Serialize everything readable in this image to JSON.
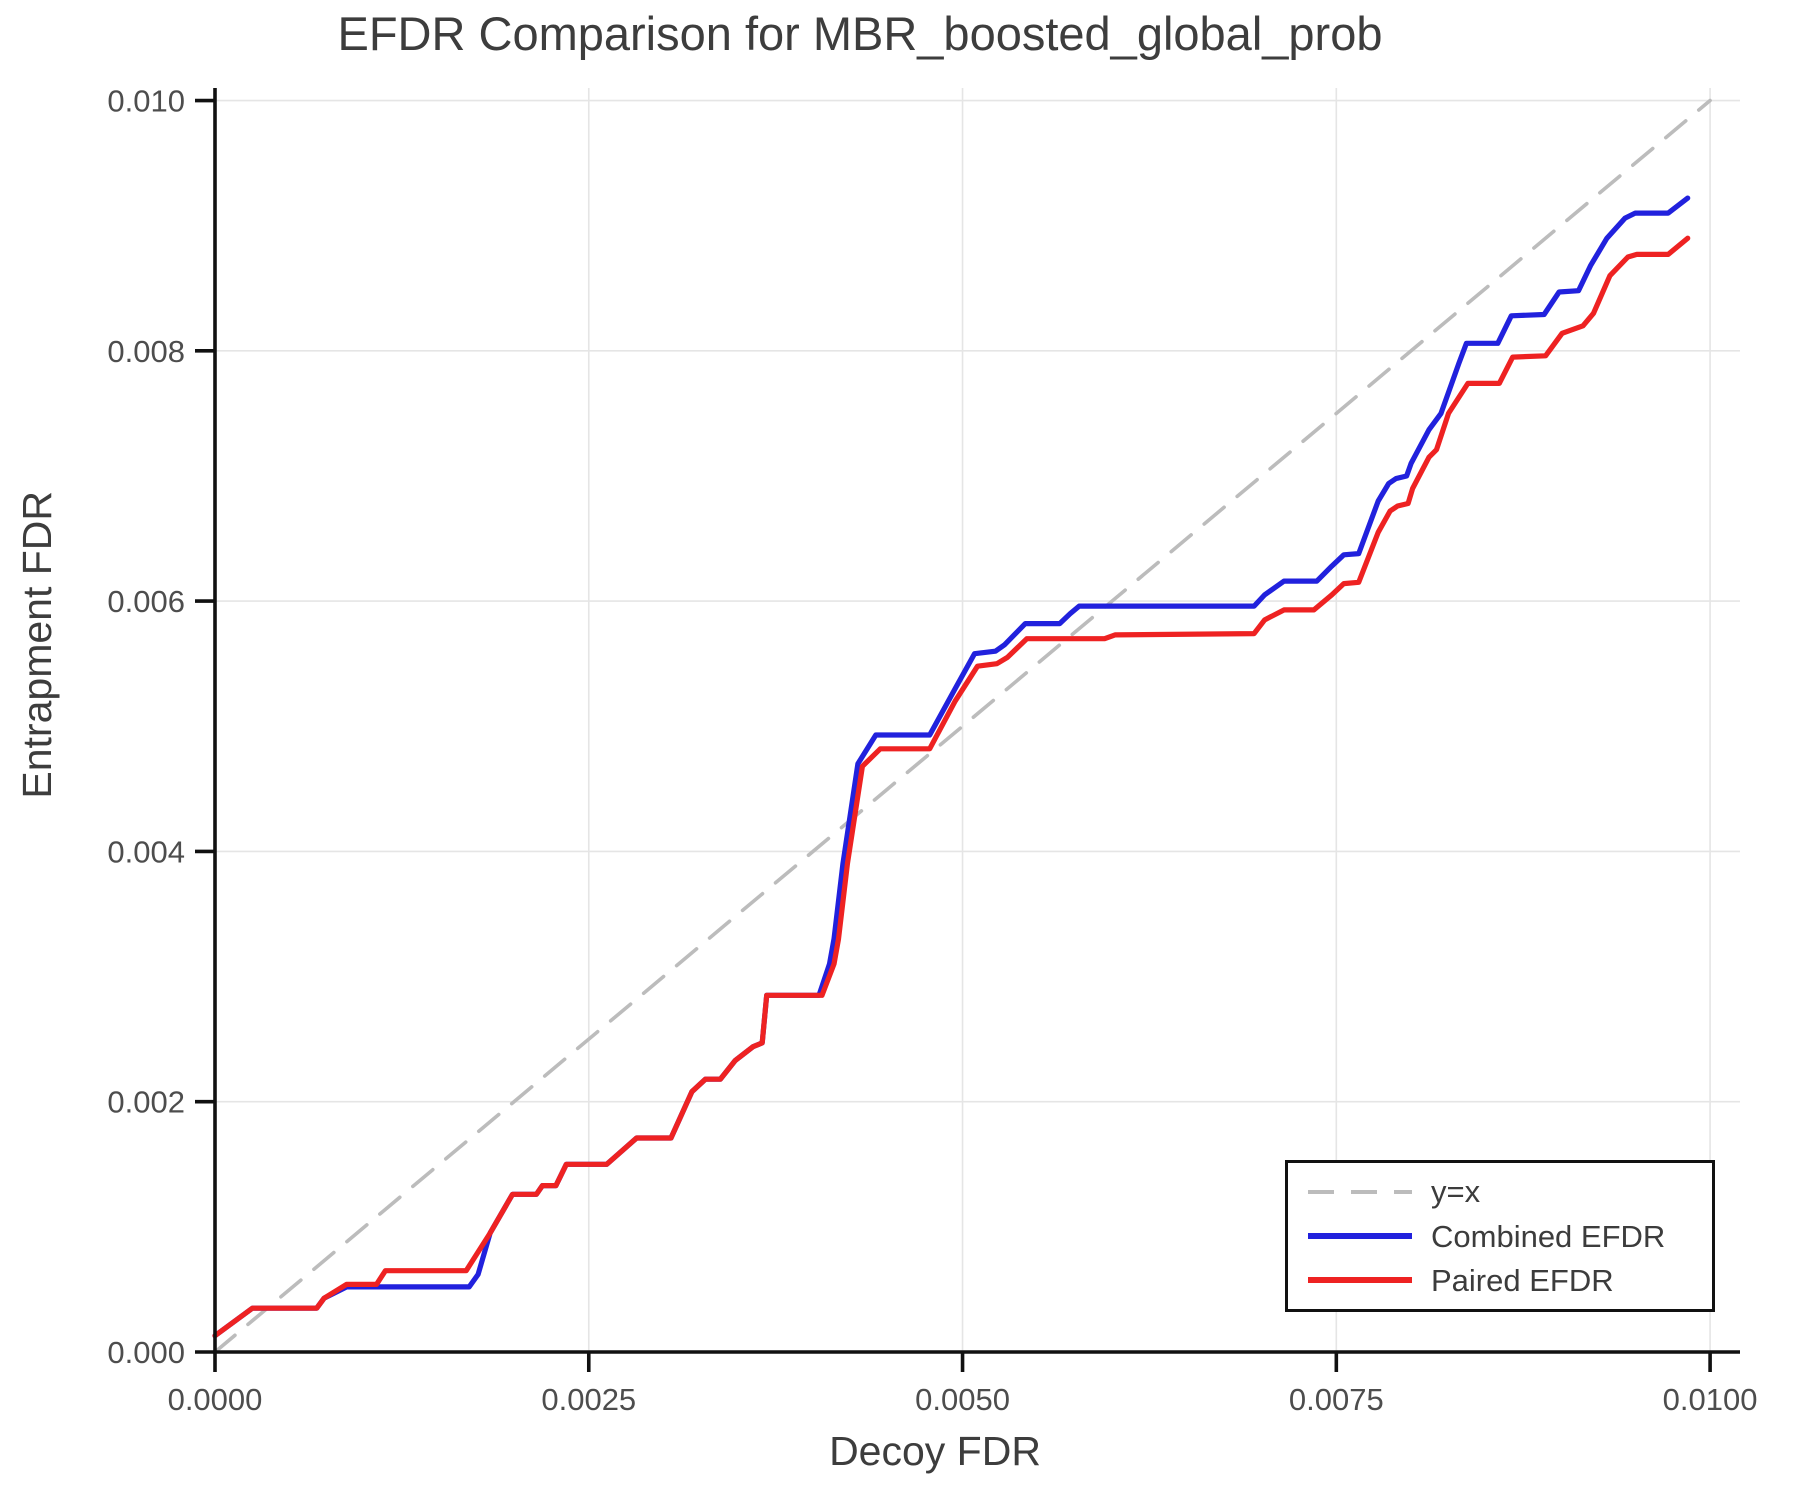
{
  "chart_data": {
    "type": "line",
    "title": "EFDR Comparison for MBR_boosted_global_prob",
    "xlabel": "Decoy FDR",
    "ylabel": "Entrapment FDR",
    "xlim": [
      0,
      0.0102
    ],
    "ylim": [
      0,
      0.0101
    ],
    "grid": true,
    "legend_position": "bottom-right",
    "x_tick_values": [
      0.0,
      0.0025,
      0.005,
      0.0075,
      0.01
    ],
    "x_tick_labels": [
      "0.0000",
      "0.0025",
      "0.0050",
      "0.0075",
      "0.0100"
    ],
    "y_tick_values": [
      0.0,
      0.002,
      0.004,
      0.006,
      0.008,
      0.01
    ],
    "y_tick_labels": [
      "0.000",
      "0.002",
      "0.004",
      "0.006",
      "0.008",
      "0.010"
    ],
    "colors": {
      "reference": "#bcbcbc",
      "combined": "#2121dd",
      "paired": "#ee2222",
      "grid": "#e5e5e5",
      "axis": "#111111",
      "tick_text": "#4d4d4d"
    },
    "series": [
      {
        "name": "y=x",
        "color": "#bcbcbc",
        "dashed": true,
        "x": [
          0,
          0.01
        ],
        "y": [
          0,
          0.01
        ]
      },
      {
        "name": "Combined EFDR",
        "color": "#2121dd",
        "dashed": false,
        "x": [
          0,
          0.00025,
          0.00068,
          0.00073,
          0.00088,
          0.0017,
          0.00176,
          0.00184,
          0.00199,
          0.00215,
          0.00219,
          0.00228,
          0.00235,
          0.00262,
          0.00282,
          0.00305,
          0.00319,
          0.00328,
          0.00338,
          0.00348,
          0.0036,
          0.00366,
          0.00369,
          0.00404,
          0.00411,
          0.00414,
          0.0042,
          0.0043,
          0.00442,
          0.00478,
          0.00495,
          0.00508,
          0.00522,
          0.00528,
          0.00542,
          0.00565,
          0.00572,
          0.00578,
          0.00695,
          0.00702,
          0.00715,
          0.00737,
          0.00747,
          0.00755,
          0.00765,
          0.00778,
          0.00785,
          0.0079,
          0.00797,
          0.008,
          0.00812,
          0.0082,
          0.00832,
          0.00837,
          0.00858,
          0.00867,
          0.00889,
          0.00899,
          0.00912,
          0.0092,
          0.00931,
          0.00943,
          0.0095,
          0.00972,
          0.00985
        ],
        "y": [
          0.00013,
          0.00035,
          0.00035,
          0.00043,
          0.00052,
          0.00052,
          0.00062,
          0.00095,
          0.00126,
          0.00126,
          0.00133,
          0.00133,
          0.0015,
          0.0015,
          0.00171,
          0.00171,
          0.00208,
          0.00218,
          0.00218,
          0.00233,
          0.00244,
          0.00247,
          0.00285,
          0.00285,
          0.0031,
          0.0033,
          0.0039,
          0.0047,
          0.00493,
          0.00493,
          0.0053,
          0.00558,
          0.0056,
          0.00565,
          0.00582,
          0.00582,
          0.0059,
          0.00596,
          0.00596,
          0.00605,
          0.00616,
          0.00616,
          0.00628,
          0.00637,
          0.00638,
          0.0068,
          0.00694,
          0.00698,
          0.007,
          0.0071,
          0.00737,
          0.0075,
          0.0079,
          0.00806,
          0.00806,
          0.00828,
          0.00829,
          0.00847,
          0.00848,
          0.00868,
          0.0089,
          0.00906,
          0.0091,
          0.0091,
          0.00922
        ]
      },
      {
        "name": "Paired EFDR",
        "color": "#ee2222",
        "dashed": false,
        "x": [
          0,
          0.00025,
          0.00068,
          0.00073,
          0.00088,
          0.00108,
          0.00114,
          0.00168,
          0.00184,
          0.00199,
          0.00215,
          0.00219,
          0.00228,
          0.00235,
          0.00262,
          0.00282,
          0.00305,
          0.00319,
          0.00328,
          0.00338,
          0.00348,
          0.0036,
          0.00366,
          0.00369,
          0.00406,
          0.00414,
          0.00417,
          0.00423,
          0.00433,
          0.00445,
          0.00478,
          0.00495,
          0.0051,
          0.00523,
          0.0053,
          0.00543,
          0.00595,
          0.00602,
          0.00695,
          0.00702,
          0.00715,
          0.00735,
          0.00747,
          0.00755,
          0.00765,
          0.00778,
          0.00786,
          0.00791,
          0.00798,
          0.00801,
          0.00812,
          0.00817,
          0.00825,
          0.00838,
          0.00859,
          0.00868,
          0.0089,
          0.00901,
          0.00915,
          0.00922,
          0.00933,
          0.00945,
          0.00951,
          0.00972,
          0.00985
        ],
        "y": [
          0.00013,
          0.00035,
          0.00035,
          0.00043,
          0.00054,
          0.00054,
          0.00065,
          0.00065,
          0.00095,
          0.00126,
          0.00126,
          0.00133,
          0.00133,
          0.0015,
          0.0015,
          0.00171,
          0.00171,
          0.00208,
          0.00218,
          0.00218,
          0.00233,
          0.00244,
          0.00247,
          0.00285,
          0.00285,
          0.0031,
          0.0033,
          0.0039,
          0.00468,
          0.00482,
          0.00482,
          0.0052,
          0.00548,
          0.0055,
          0.00555,
          0.0057,
          0.0057,
          0.00573,
          0.00574,
          0.00585,
          0.00593,
          0.00593,
          0.00605,
          0.00614,
          0.00615,
          0.00655,
          0.00672,
          0.00676,
          0.00678,
          0.0069,
          0.00715,
          0.00721,
          0.0075,
          0.00774,
          0.00774,
          0.00795,
          0.00796,
          0.00814,
          0.0082,
          0.0083,
          0.0086,
          0.00875,
          0.00877,
          0.00877,
          0.0089
        ]
      }
    ],
    "legend": {
      "entries": [
        "y=x",
        "Combined EFDR",
        "Paired EFDR"
      ]
    }
  }
}
